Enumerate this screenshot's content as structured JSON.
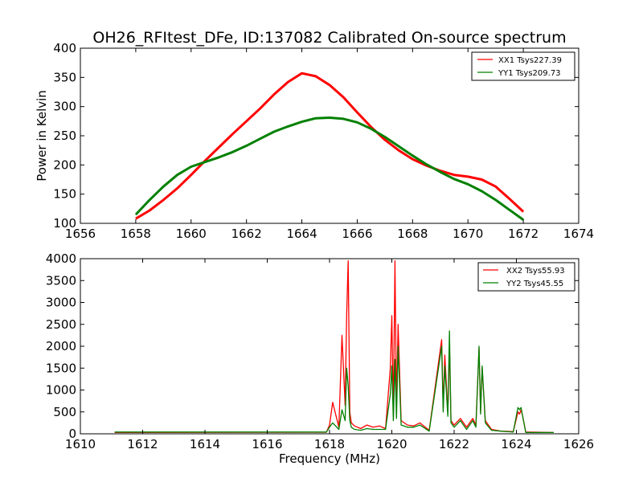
{
  "title": "OH26_RFItest_DFe, ID:137082 Calibrated On-source spectrum",
  "chart_data": [
    {
      "type": "line",
      "ylabel": "Power in Kelvin",
      "xlabel": "",
      "xlim": [
        1656,
        1674
      ],
      "ylim": [
        100,
        400
      ],
      "xticks": [
        1656,
        1658,
        1660,
        1662,
        1664,
        1666,
        1668,
        1670,
        1672,
        1674
      ],
      "yticks": [
        100,
        150,
        200,
        250,
        300,
        350,
        400
      ],
      "legend_position": "top-right",
      "series": [
        {
          "name": "XX1 Tsys227.39",
          "color": "#ff0000",
          "x": [
            1658.0,
            1658.5,
            1659.0,
            1659.5,
            1660.0,
            1660.5,
            1661.0,
            1661.5,
            1662.0,
            1662.5,
            1663.0,
            1663.5,
            1664.0,
            1664.5,
            1665.0,
            1665.5,
            1666.0,
            1666.5,
            1667.0,
            1667.5,
            1668.0,
            1668.5,
            1669.0,
            1669.5,
            1670.0,
            1670.5,
            1671.0,
            1671.5,
            1672.0
          ],
          "y": [
            108,
            122,
            140,
            160,
            183,
            207,
            230,
            253,
            275,
            297,
            321,
            342,
            357,
            352,
            337,
            316,
            290,
            265,
            243,
            225,
            210,
            199,
            190,
            183,
            180,
            175,
            163,
            142,
            120
          ]
        },
        {
          "name": "YY1 Tsys209.73",
          "color": "#008000",
          "x": [
            1658.0,
            1658.5,
            1659.0,
            1659.5,
            1660.0,
            1660.5,
            1661.0,
            1661.5,
            1662.0,
            1662.5,
            1663.0,
            1663.5,
            1664.0,
            1664.5,
            1665.0,
            1665.5,
            1666.0,
            1666.5,
            1667.0,
            1667.5,
            1668.0,
            1668.5,
            1669.0,
            1669.5,
            1670.0,
            1670.5,
            1671.0,
            1671.5,
            1672.0
          ],
          "y": [
            115,
            140,
            163,
            183,
            197,
            205,
            213,
            222,
            233,
            245,
            257,
            266,
            274,
            280,
            281,
            279,
            273,
            262,
            248,
            232,
            216,
            201,
            188,
            176,
            167,
            155,
            140,
            123,
            106
          ]
        }
      ]
    },
    {
      "type": "line",
      "ylabel": "",
      "xlabel": "Frequency (MHz)",
      "xlim": [
        1610,
        1626
      ],
      "ylim": [
        0,
        4000
      ],
      "xticks": [
        1610,
        1612,
        1614,
        1616,
        1618,
        1620,
        1622,
        1624,
        1626
      ],
      "yticks": [
        0,
        500,
        1000,
        1500,
        2000,
        2500,
        3000,
        3500,
        4000
      ],
      "legend_position": "top-right",
      "series": [
        {
          "name": "XX2 Tsys55.93",
          "color": "#ff0000",
          "x": [
            1611.1,
            1617.9,
            1618.0,
            1618.1,
            1618.3,
            1618.4,
            1618.5,
            1618.55,
            1618.6,
            1618.65,
            1618.7,
            1618.8,
            1619.0,
            1619.2,
            1619.4,
            1619.6,
            1619.8,
            1619.95,
            1620.0,
            1620.05,
            1620.1,
            1620.15,
            1620.2,
            1620.3,
            1620.5,
            1620.7,
            1620.9,
            1621.2,
            1621.6,
            1621.65,
            1621.7,
            1621.8,
            1621.85,
            1621.9,
            1622.0,
            1622.2,
            1622.4,
            1622.6,
            1622.7,
            1622.8,
            1622.85,
            1622.9,
            1623.0,
            1623.2,
            1623.5,
            1623.9,
            1624.05,
            1624.1,
            1624.15,
            1624.2,
            1624.3,
            1625.2
          ],
          "y": [
            30,
            35,
            200,
            720,
            150,
            2250,
            650,
            2700,
            3950,
            500,
            250,
            180,
            120,
            200,
            150,
            180,
            120,
            1500,
            2700,
            400,
            3950,
            600,
            2500,
            300,
            200,
            180,
            250,
            80,
            2150,
            600,
            1800,
            500,
            2000,
            300,
            200,
            350,
            150,
            350,
            200,
            1950,
            500,
            1500,
            300,
            100,
            60,
            50,
            500,
            450,
            550,
            400,
            40,
            30
          ]
        },
        {
          "name": "YY2 Tsys45.55",
          "color": "#008000",
          "x": [
            1611.1,
            1617.9,
            1618.0,
            1618.1,
            1618.3,
            1618.4,
            1618.5,
            1618.55,
            1618.6,
            1618.65,
            1618.7,
            1618.8,
            1619.0,
            1619.2,
            1619.4,
            1619.6,
            1619.8,
            1619.95,
            1620.0,
            1620.05,
            1620.1,
            1620.15,
            1620.2,
            1620.3,
            1620.5,
            1620.7,
            1620.9,
            1621.2,
            1621.6,
            1621.65,
            1621.7,
            1621.8,
            1621.85,
            1621.9,
            1622.0,
            1622.2,
            1622.4,
            1622.6,
            1622.7,
            1622.8,
            1622.85,
            1622.9,
            1623.0,
            1623.2,
            1623.5,
            1623.9,
            1624.05,
            1624.1,
            1624.15,
            1624.2,
            1624.3,
            1625.2
          ],
          "y": [
            40,
            40,
            150,
            250,
            100,
            550,
            300,
            1500,
            1100,
            300,
            150,
            100,
            80,
            120,
            100,
            100,
            100,
            900,
            1550,
            300,
            1700,
            350,
            2000,
            200,
            150,
            150,
            200,
            60,
            2000,
            500,
            1550,
            400,
            2350,
            250,
            150,
            300,
            100,
            300,
            150,
            2000,
            450,
            1550,
            250,
            80,
            60,
            40,
            600,
            550,
            600,
            400,
            30,
            30
          ]
        }
      ]
    }
  ]
}
